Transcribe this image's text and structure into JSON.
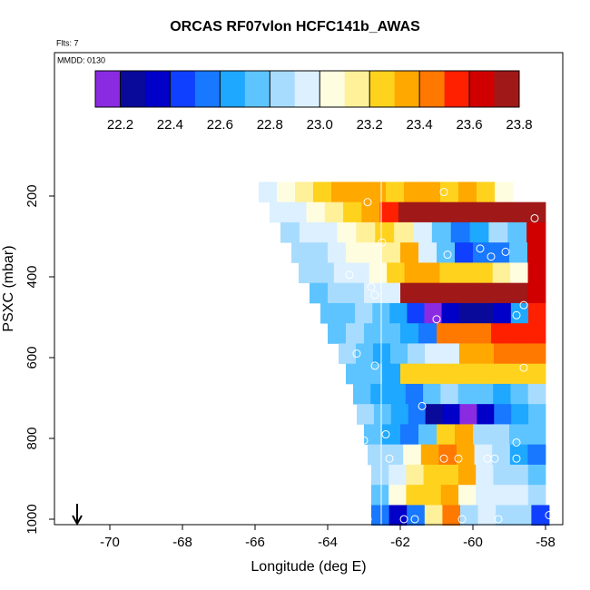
{
  "chart_data": {
    "type": "heatmap",
    "title": "ORCAS RF07vlon HCFC141b_AWAS",
    "flights_note": "Flts: 7",
    "date_note": "MMDD: 0130",
    "x_label": "Longitude (deg E)",
    "y_label": "PSXC (mbar)",
    "xlim": [
      -71.525,
      -57.525
    ],
    "xticks": [
      -70,
      -68,
      -66,
      -64,
      -62,
      -60,
      -58
    ],
    "ylim": [
      -155,
      1013.5
    ],
    "y_reversed": true,
    "yticks": [
      200,
      400,
      600,
      800,
      1000
    ],
    "colorbar": {
      "levels": [
        22.1,
        22.2,
        22.3,
        22.4,
        22.5,
        22.6,
        22.7,
        22.8,
        22.9,
        23.0,
        23.1,
        23.2,
        23.3,
        23.4,
        23.5,
        23.6,
        23.7,
        23.8
      ],
      "colors": [
        "#8a2be2",
        "#0a0a9a",
        "#0000c8",
        "#1040ff",
        "#1878ff",
        "#1ea8ff",
        "#5ec4ff",
        "#a8dcff",
        "#dcf0ff",
        "#fffde0",
        "#fff09a",
        "#ffd21e",
        "#ffa800",
        "#ff7800",
        "#ff2000",
        "#d00000",
        "#a01818"
      ],
      "ticks": [
        22.2,
        22.4,
        22.6,
        22.8,
        {
          "value": 23.0,
          "label": "23.0"
        },
        23.2,
        23.4,
        23.6,
        23.8
      ]
    },
    "rows": [
      {
        "p": 190,
        "lon_start": -65.9,
        "lon_end": -58.9,
        "values": [
          22.95,
          23.0,
          23.1,
          23.2,
          23.3,
          23.35,
          23.3,
          23.2,
          23.3,
          23.35,
          23.25,
          23.3,
          23.2,
          23.05
        ]
      },
      {
        "p": 240,
        "lon_start": -65.6,
        "lon_end": -58.0,
        "values": [
          22.9,
          22.95,
          23.05,
          23.1,
          23.2,
          23.3,
          23.5,
          23.75,
          23.75,
          23.75,
          23.75,
          23.75,
          23.75,
          23.75,
          23.75
        ]
      },
      {
        "p": 290,
        "lon_start": -65.3,
        "lon_end": -58.0,
        "values": [
          22.85,
          22.9,
          22.95,
          23.05,
          23.15,
          23.2,
          23.1,
          22.9,
          22.7,
          22.5,
          22.6,
          22.8,
          22.7,
          23.65
        ]
      },
      {
        "p": 340,
        "lon_start": -65.0,
        "lon_end": -58.0,
        "values": [
          22.8,
          22.85,
          22.9,
          23.0,
          23.05,
          23.15,
          23.3,
          22.95,
          22.7,
          22.45,
          22.5,
          22.55,
          22.7,
          23.65
        ]
      },
      {
        "p": 390,
        "lon_start": -64.8,
        "lon_end": -58.0,
        "values": [
          22.8,
          22.85,
          22.9,
          22.95,
          23.0,
          23.2,
          23.3,
          23.3,
          23.25,
          23.2,
          23.25,
          23.1,
          23.0,
          23.6
        ]
      },
      {
        "p": 440,
        "lon_start": -64.5,
        "lon_end": -58.0,
        "values": [
          22.75,
          22.8,
          22.85,
          22.9,
          22.95,
          23.75,
          23.75,
          23.75,
          23.75,
          23.75,
          23.75,
          23.7,
          23.6
        ]
      },
      {
        "p": 490,
        "lon_start": -64.2,
        "lon_end": -58.0,
        "values": [
          22.7,
          22.75,
          22.8,
          22.75,
          22.6,
          22.4,
          22.15,
          22.3,
          22.25,
          22.2,
          22.35,
          22.6,
          23.55
        ]
      },
      {
        "p": 540,
        "lon_start": -64.0,
        "lon_end": -58.0,
        "values": [
          22.75,
          22.8,
          22.75,
          22.7,
          22.6,
          22.55,
          23.45,
          23.4,
          23.45,
          23.5,
          23.55,
          23.5
        ]
      },
      {
        "p": 590,
        "lon_start": -63.7,
        "lon_end": -58.0,
        "values": [
          22.8,
          22.7,
          22.65,
          22.75,
          22.85,
          22.9,
          22.95,
          23.35,
          23.35,
          23.4,
          23.45,
          23.4
        ]
      },
      {
        "p": 640,
        "lon_start": -63.5,
        "lon_end": -58.0,
        "values": [
          22.75,
          22.7,
          22.6,
          23.2,
          23.2,
          23.2,
          23.2,
          23.2,
          23.2,
          23.2,
          23.25
        ]
      },
      {
        "p": 690,
        "lon_start": -63.3,
        "lon_end": -58.0,
        "values": [
          22.75,
          22.65,
          22.6,
          22.55,
          22.7,
          22.8,
          22.75,
          22.7,
          22.65,
          22.75,
          22.85
        ]
      },
      {
        "p": 740,
        "lon_start": -63.2,
        "lon_end": -58.0,
        "values": [
          22.8,
          22.7,
          22.65,
          22.5,
          22.25,
          22.3,
          22.15,
          22.3,
          22.55,
          22.6,
          22.75
        ]
      },
      {
        "p": 790,
        "lon_start": -63.0,
        "lon_end": -58.0,
        "values": [
          22.75,
          22.6,
          22.5,
          22.7,
          23.2,
          23.3,
          22.85,
          22.8,
          22.7,
          22.75
        ]
      },
      {
        "p": 840,
        "lon_start": -62.9,
        "lon_end": -58.0,
        "values": [
          22.8,
          22.85,
          23.0,
          23.35,
          23.45,
          23.3,
          22.95,
          22.8,
          22.65,
          22.55
        ]
      },
      {
        "p": 890,
        "lon_start": -62.8,
        "lon_end": -58.0,
        "values": [
          22.85,
          22.9,
          23.1,
          23.2,
          23.25,
          23.3,
          22.9,
          22.85,
          22.8,
          22.75
        ]
      },
      {
        "p": 940,
        "lon_start": -62.8,
        "lon_end": -58.0,
        "values": [
          22.75,
          23.05,
          23.2,
          23.25,
          23.3,
          23.05,
          22.95,
          22.95,
          22.9,
          22.85
        ]
      },
      {
        "p": 990,
        "lon_start": -62.8,
        "lon_end": -57.9,
        "values": [
          22.55,
          22.3,
          22.5,
          23.1,
          23.45,
          22.85,
          22.9,
          22.85,
          22.8,
          22.4
        ]
      }
    ],
    "points": {
      "lon": [
        -62.9,
        -60.8,
        -58.3,
        -62.5,
        -60.7,
        -59.8,
        -59.5,
        -59.1,
        -63.4,
        -62.8,
        -62.7,
        -58.6,
        -58.8,
        -61.0,
        -63.2,
        -62.7,
        -58.6,
        -61.4,
        -62.4,
        -63.0,
        -58.8,
        -62.3,
        -60.8,
        -60.4,
        -59.6,
        -59.4,
        -58.8,
        -62.9,
        -61.9,
        -61.6,
        -60.3,
        -59.3,
        -57.9
      ],
      "p": [
        215,
        190,
        255,
        315,
        345,
        330,
        350,
        338,
        395,
        425,
        445,
        470,
        495,
        505,
        590,
        620,
        625,
        720,
        790,
        805,
        810,
        850,
        850,
        850,
        850,
        850,
        850,
        1000,
        1000,
        1000,
        1000,
        1000,
        990
      ]
    }
  }
}
